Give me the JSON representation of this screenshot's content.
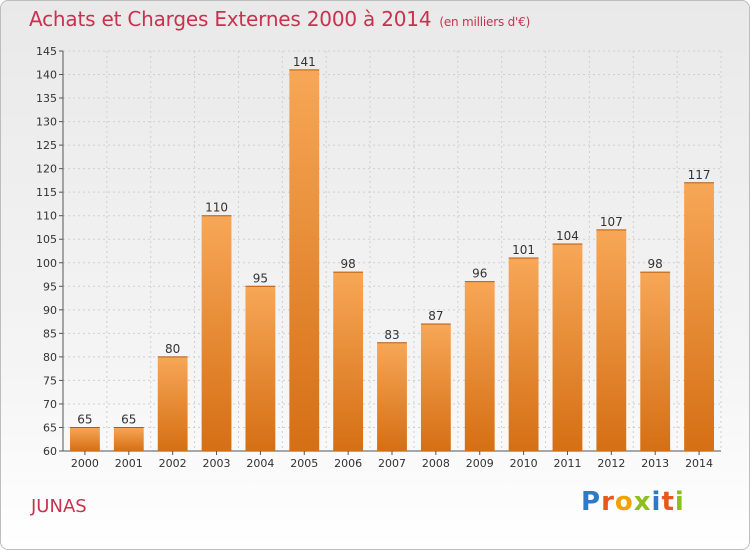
{
  "header": {
    "title": "Achats et Charges Externes 2000 à 2014",
    "subtitle": "(en milliers d'€)"
  },
  "footer": {
    "commune": "JUNAS",
    "logo_letters": [
      "P",
      "r",
      "o",
      "x",
      "i",
      "t",
      "i"
    ]
  },
  "colors": {
    "title": "#c8324f",
    "bar_light": "#f7a757",
    "bar_dark": "#d56f14",
    "logo": [
      "#2e7bc4",
      "#e8571e",
      "#f1a100",
      "#8fbf1e",
      "#2e7bc4",
      "#e8571e",
      "#8fbf1e"
    ]
  },
  "chart_data": {
    "type": "bar",
    "title": "Achats et Charges Externes 2000 à 2014",
    "subtitle": "(en milliers d'€)",
    "categories": [
      "2000",
      "2001",
      "2002",
      "2003",
      "2004",
      "2005",
      "2006",
      "2007",
      "2008",
      "2009",
      "2010",
      "2011",
      "2012",
      "2013",
      "2014"
    ],
    "values": [
      65,
      65,
      80,
      110,
      95,
      141,
      98,
      83,
      87,
      96,
      101,
      104,
      107,
      98,
      117
    ],
    "ylim": [
      60,
      145
    ],
    "yticks": [
      60,
      65,
      70,
      75,
      80,
      85,
      90,
      95,
      100,
      105,
      110,
      115,
      120,
      125,
      130,
      135,
      140,
      145
    ],
    "grid": true,
    "xlabel": "",
    "ylabel": ""
  }
}
